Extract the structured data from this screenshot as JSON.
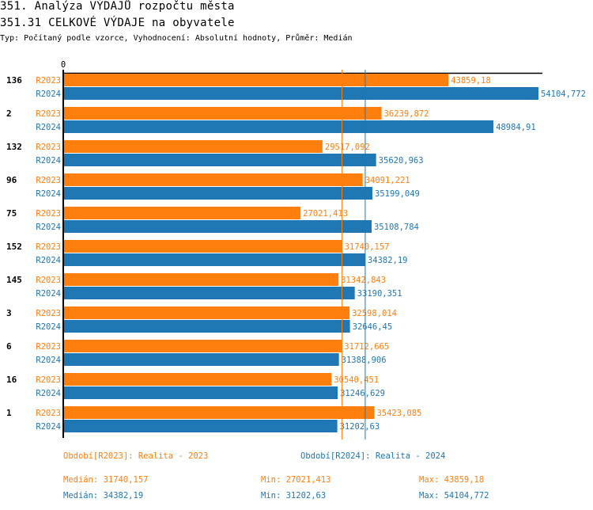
{
  "header": {
    "title": "351. Analýza VÝDAJŮ rozpočtu města",
    "subtitle": "351.31 CELKOVÉ VÝDAJE na obyvatele",
    "info": "Typ: Počítaný podle vzorce, Vyhodnocení: Absolutní hodnoty, Průměr: Medián"
  },
  "chart_data": {
    "type": "bar",
    "orientation": "horizontal",
    "xlim": [
      0,
      54104.772
    ],
    "x_tick_labels": [
      "0"
    ],
    "colors": {
      "R2023": "#ff7f0e",
      "R2024": "#1f77b4"
    },
    "categories": [
      "136",
      "2",
      "132",
      "96",
      "75",
      "152",
      "145",
      "3",
      "6",
      "16",
      "1"
    ],
    "series": [
      {
        "name": "R2023",
        "values": [
          43859.18,
          36239.872,
          29517.092,
          34091.221,
          27021.413,
          31740.157,
          31342.843,
          32598.014,
          31712.665,
          30540.451,
          35423.085
        ],
        "labels": [
          "43859,18",
          "36239,872",
          "29517,092",
          "34091,221",
          "27021,413",
          "31740,157",
          "31342,843",
          "32598,014",
          "31712,665",
          "30540,451",
          "35423,085"
        ],
        "median": 31740.157
      },
      {
        "name": "R2024",
        "values": [
          54104.772,
          48984.91,
          35620.963,
          35199.049,
          35108.784,
          34382.19,
          33190.351,
          32646.45,
          31388.906,
          31246.629,
          31202.63
        ],
        "labels": [
          "54104,772",
          "48984,91",
          "35620,963",
          "35199,049",
          "35108,784",
          "34382,19",
          "33190,351",
          "32646,45",
          "31388,906",
          "31246,629",
          "31202,63"
        ],
        "median": 34382.19
      }
    ]
  },
  "legend": {
    "r2023": "Období[R2023]: Realita - 2023",
    "r2024": "Období[R2024]: Realita - 2024"
  },
  "stats": {
    "r2023": {
      "median": "Medián: 31740,157",
      "min": "Min: 27021,413",
      "max": "Max: 43859,18"
    },
    "r2024": {
      "median": "Medián: 34382,19",
      "min": "Min: 31202,63",
      "max": "Max: 54104,772"
    }
  }
}
